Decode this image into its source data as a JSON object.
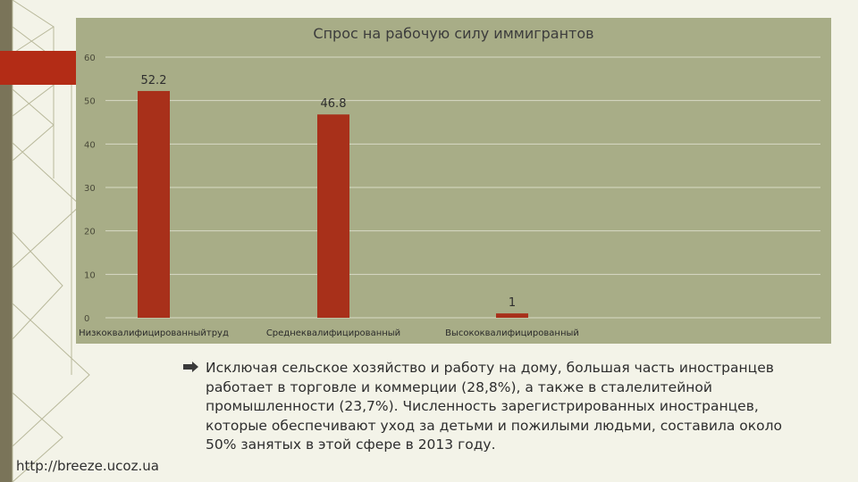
{
  "colors": {
    "bar": "#a8301a",
    "panel": "#a8ad87",
    "accent": "#b32c16",
    "strip": "#7a7459"
  },
  "chart_data": {
    "type": "bar",
    "title": "Спрос на рабочую силу иммигрантов",
    "categories": [
      "Низкоквалифицированныйтруд",
      "Среднеквалифицированный",
      "Высококвалифицированный"
    ],
    "values": [
      52.2,
      46.8,
      1
    ],
    "value_labels": [
      "52.2",
      "46.8",
      "1"
    ],
    "yticks": [
      "0",
      "10",
      "20",
      "30",
      "40",
      "50",
      "60"
    ],
    "ylim": [
      0,
      60
    ],
    "grid": true,
    "xlabel": "",
    "ylabel": ""
  },
  "body": {
    "bullet_icon": "arrow-bullet-icon",
    "paragraph": "Исключая сельское хозяйство и работу на дому, большая часть иностранцев работает в торговле и коммерции (28,8%), а также в сталелитейной промышленности (23,7%). Численность зарегистрированных иностранцев, которые обеспечивают уход за детьми и пожилыми людьми, составила около 50% занятых в этой сфере в 2013 году."
  },
  "footer": {
    "source_url": "http://breeze.ucoz.ua"
  }
}
